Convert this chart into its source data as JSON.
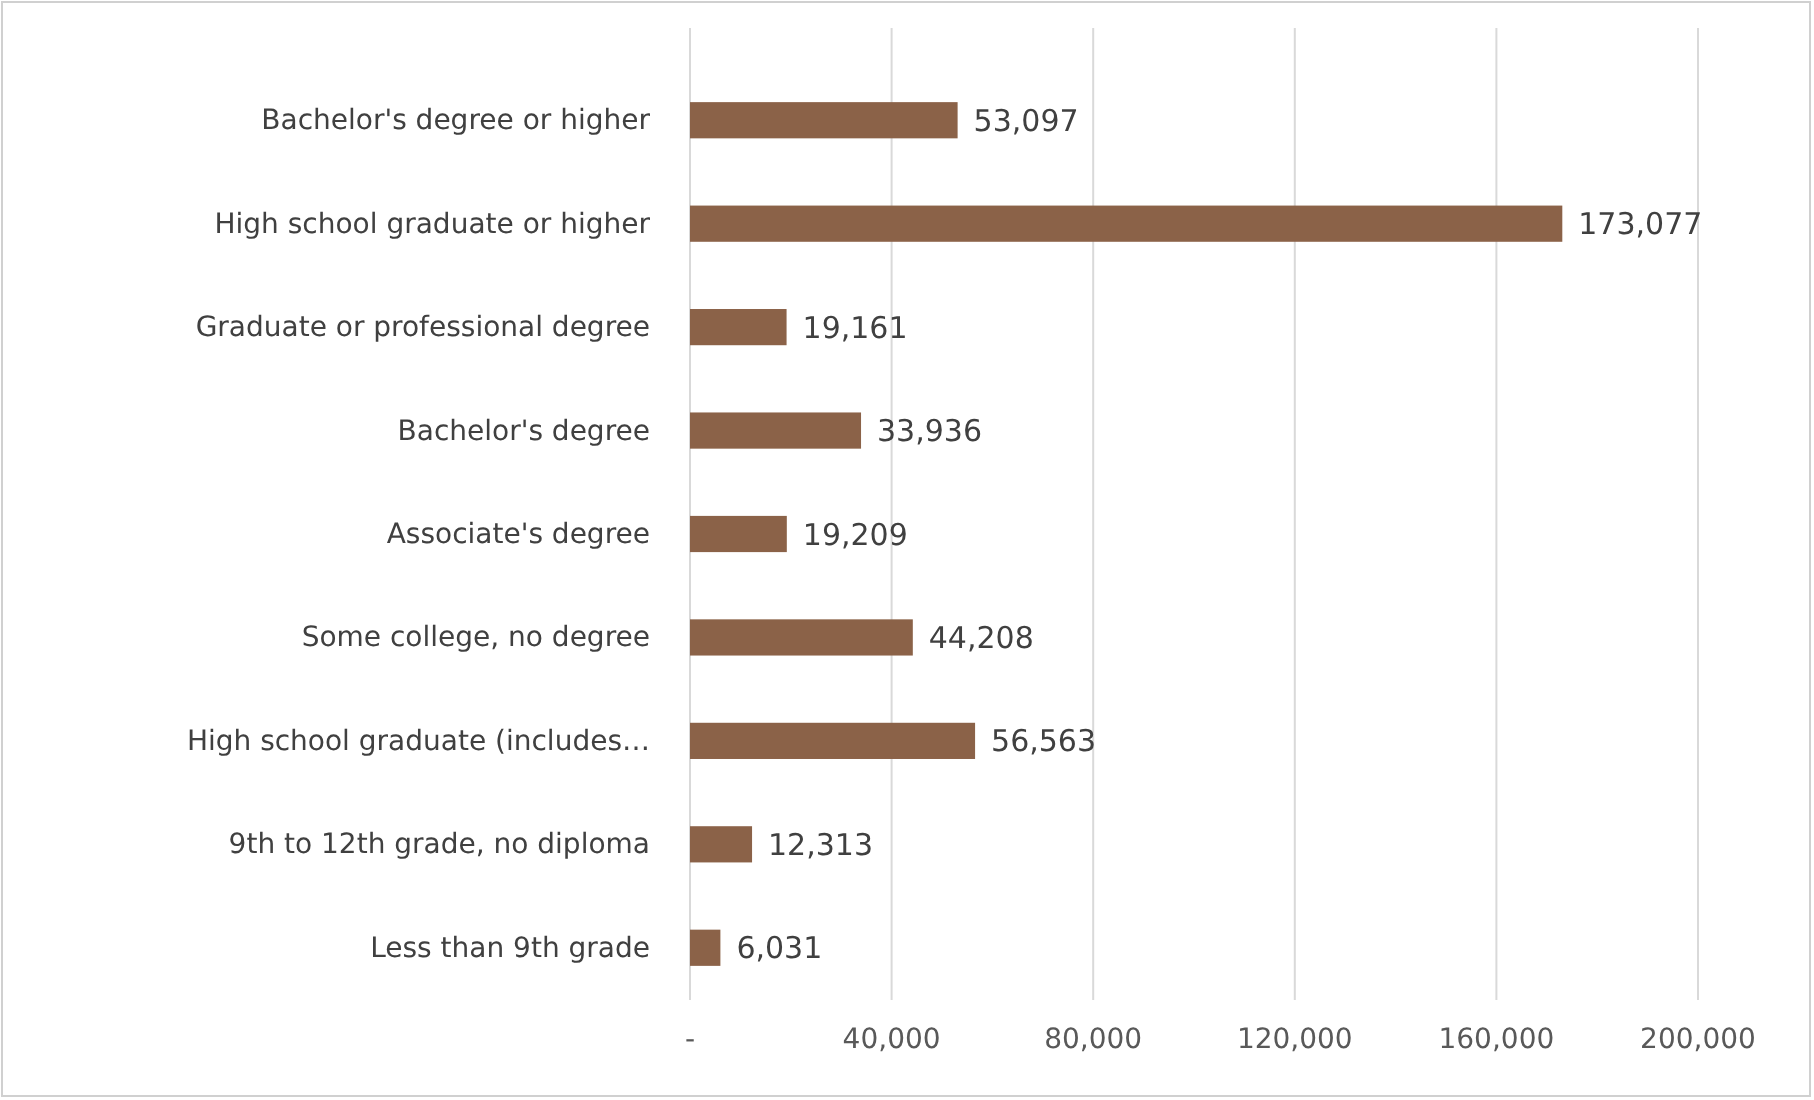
{
  "chart_data": {
    "type": "bar",
    "orientation": "horizontal",
    "categories": [
      "Bachelor's degree or higher",
      "High school graduate or higher",
      "Graduate or professional degree",
      "Bachelor's degree",
      "Associate's degree",
      "Some college, no degree",
      "High school graduate (includes…",
      "9th to 12th grade, no diploma",
      "Less than 9th grade"
    ],
    "values": [
      53097,
      173077,
      19161,
      33936,
      19209,
      44208,
      56563,
      12313,
      6031
    ],
    "color": "#8b6248",
    "xlim": [
      0,
      200000
    ],
    "xticks": [
      {
        "value": 0,
        "label": "-"
      },
      {
        "value": 40000,
        "label": "40,000"
      },
      {
        "value": 80000,
        "label": "80,000"
      },
      {
        "value": 120000,
        "label": "120,000"
      },
      {
        "value": 160000,
        "label": "160,000"
      },
      {
        "value": 200000,
        "label": "200,000"
      }
    ],
    "value_labels": [
      "53,097",
      "173,077",
      "19,161",
      "33,936",
      "19,209",
      "44,208",
      "56,563",
      "12,313",
      "6,031"
    ],
    "grid": "x"
  }
}
